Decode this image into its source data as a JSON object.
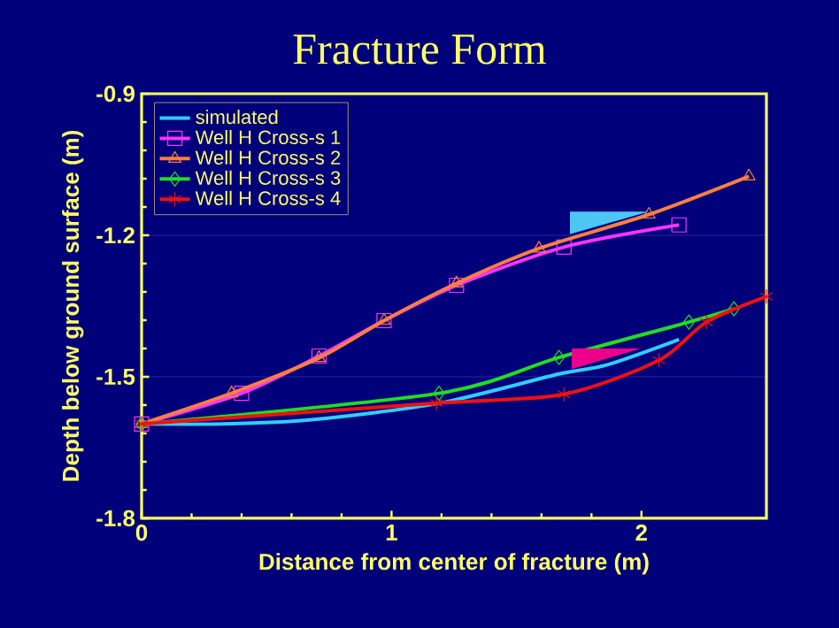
{
  "chart_data": {
    "type": "line",
    "title": "Fracture Form",
    "xlabel": "Distance from center of fracture (m)",
    "ylabel": "Depth below ground surface (m)",
    "xlim": [
      0,
      2.5
    ],
    "ylim": [
      -1.8,
      -0.9
    ],
    "xticks": [
      0,
      1,
      2
    ],
    "yticks": [
      -1.8,
      -1.5,
      -1.2,
      -0.9
    ],
    "grid": "y",
    "legend": "top left",
    "line_style": "solid",
    "series": [
      {
        "name": "simulated",
        "color": "#33ccff",
        "marker": "none",
        "x": [
          0,
          0.33,
          0.68,
          1.19,
          1.67,
          1.86,
          2.15
        ],
        "values": [
          -1.6,
          -1.6,
          -1.591,
          -1.556,
          -1.494,
          -1.475,
          -1.421
        ]
      },
      {
        "name": "Well H Cross-s 1",
        "color": "#ff33ff",
        "marker": "square",
        "x": [
          0,
          0.4,
          0.71,
          0.97,
          1.26,
          1.69,
          2.15
        ],
        "values": [
          -1.6,
          -1.535,
          -1.456,
          -1.381,
          -1.306,
          -1.225,
          -1.178
        ]
      },
      {
        "name": "Well H Cross-s 2",
        "color": "#ff7f3f",
        "marker": "triangle",
        "x": [
          0,
          0.36,
          0.71,
          0.97,
          1.26,
          1.59,
          2.03,
          2.43
        ],
        "values": [
          -1.6,
          -1.535,
          -1.46,
          -1.381,
          -1.302,
          -1.228,
          -1.156,
          -1.075
        ]
      },
      {
        "name": "Well H Cross-s 3",
        "color": "#22dd22",
        "marker": "diamond",
        "x": [
          0,
          1.19,
          1.67,
          2.19,
          2.37
        ],
        "values": [
          -1.6,
          -1.535,
          -1.459,
          -1.384,
          -1.356
        ]
      },
      {
        "name": "Well H Cross-s 4",
        "color": "#ee1111",
        "marker": "cross",
        "x": [
          0,
          1.18,
          1.69,
          2.07,
          2.26,
          2.5
        ],
        "values": [
          -1.6,
          -1.556,
          -1.537,
          -1.465,
          -1.384,
          -1.33
        ]
      }
    ]
  }
}
